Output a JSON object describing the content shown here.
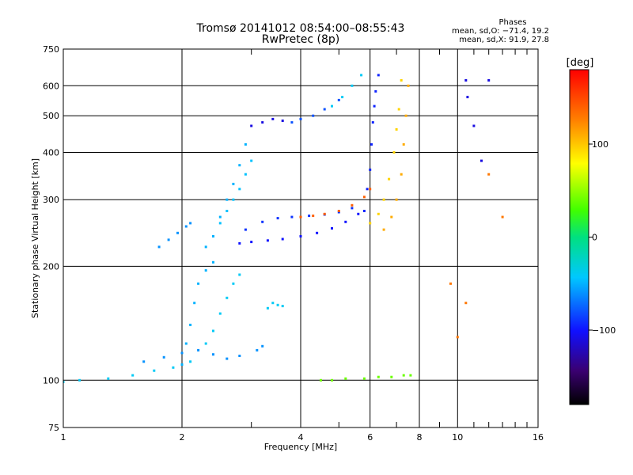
{
  "chart_data": {
    "type": "scatter",
    "title": "Tromsø 20141012 08:54:00–08:55:43",
    "subtitle": "RwPretec (8p)",
    "xlabel": "Frequency [MHz]",
    "ylabel": "Stationary phase Virtual Height [km]",
    "x_scale": "log",
    "y_scale": "log",
    "xlim": [
      1,
      16
    ],
    "ylim": [
      75,
      750
    ],
    "x_ticks": [
      1,
      2,
      4,
      6,
      8,
      10,
      16
    ],
    "x_tick_labels": [
      "1",
      "2",
      "4",
      "6",
      "8",
      "10",
      "16"
    ],
    "y_ticks": [
      75,
      100,
      200,
      300,
      400,
      500,
      600,
      750
    ],
    "y_tick_labels": [
      "75",
      "100",
      "200",
      "300",
      "400",
      "500",
      "600",
      "750"
    ],
    "grid": true,
    "stats": {
      "heading": "Phases",
      "line_o": "mean, sd,O: −71.4, 19.2",
      "line_x": "mean, sd,X:  91.9, 27.8"
    },
    "colorbar": {
      "label": "[deg]",
      "range": [
        -180,
        180
      ],
      "ticks": [
        -100,
        0,
        100
      ],
      "tick_labels": [
        "−100",
        "0",
        "100"
      ]
    },
    "traces": [
      {
        "x": [
          1.0,
          1.1,
          1.3,
          1.5,
          1.7,
          1.9,
          2.0,
          2.1
        ],
        "y": [
          99,
          100,
          101,
          103,
          106,
          108,
          110,
          112
        ],
        "phase": -40
      },
      {
        "x": [
          1.6,
          1.8,
          2.0,
          2.2,
          2.4,
          2.6,
          2.8,
          3.1,
          3.2
        ],
        "y": [
          112,
          115,
          118,
          120,
          117,
          114,
          116,
          120,
          123
        ],
        "phase": -60
      },
      {
        "x": [
          2.0,
          2.05,
          2.1,
          2.15,
          2.2,
          2.3,
          2.4
        ],
        "y": [
          110,
          125,
          140,
          160,
          180,
          195,
          205
        ],
        "phase": -50
      },
      {
        "x": [
          2.3,
          2.4,
          2.5,
          2.6,
          2.7,
          2.8
        ],
        "y": [
          125,
          135,
          150,
          165,
          180,
          190
        ],
        "phase": -40
      },
      {
        "x": [
          3.3,
          3.4,
          3.5,
          3.6
        ],
        "y": [
          155,
          160,
          158,
          157
        ],
        "phase": -40
      },
      {
        "x": [
          1.75,
          1.85,
          1.95,
          2.05,
          2.1
        ],
        "y": [
          225,
          235,
          245,
          255,
          260
        ],
        "phase": -60
      },
      {
        "x": [
          2.3,
          2.4,
          2.5,
          2.6,
          2.7,
          2.8,
          2.9
        ],
        "y": [
          225,
          240,
          270,
          300,
          330,
          370,
          420
        ],
        "phase": -50
      },
      {
        "x": [
          2.5,
          2.6,
          2.7,
          2.8,
          2.9,
          3.0
        ],
        "y": [
          260,
          280,
          300,
          320,
          350,
          380
        ],
        "phase": -45
      },
      {
        "x": [
          2.8,
          3.0,
          3.3,
          3.6,
          4.0,
          4.4,
          4.8,
          5.2,
          5.6
        ],
        "y": [
          230,
          232,
          234,
          236,
          240,
          245,
          252,
          262,
          275
        ],
        "phase": -100
      },
      {
        "x": [
          2.9,
          3.2,
          3.5,
          3.8,
          4.2,
          4.6,
          5.0,
          5.4
        ],
        "y": [
          250,
          262,
          268,
          270,
          272,
          274,
          278,
          285
        ],
        "phase": -90
      },
      {
        "x": [
          4.0,
          4.3,
          4.6,
          5.0,
          5.4,
          5.8,
          6.0
        ],
        "y": [
          270,
          272,
          275,
          280,
          290,
          305,
          320
        ],
        "phase": 140
      },
      {
        "x": [
          5.8,
          5.9,
          6.0,
          6.05,
          6.1,
          6.15,
          6.2,
          6.3
        ],
        "y": [
          280,
          320,
          360,
          420,
          480,
          530,
          580,
          640
        ],
        "phase": -95
      },
      {
        "x": [
          6.0,
          6.3,
          6.5,
          6.7,
          6.9,
          7.0,
          7.1,
          7.2
        ],
        "y": [
          260,
          275,
          300,
          340,
          400,
          460,
          520,
          620
        ],
        "phase": 95
      },
      {
        "x": [
          6.5,
          6.8,
          7.0,
          7.2,
          7.3,
          7.4,
          7.5
        ],
        "y": [
          250,
          270,
          300,
          350,
          420,
          500,
          600
        ],
        "phase": 110
      },
      {
        "x": [
          3.0,
          3.2,
          3.4,
          3.6
        ],
        "y": [
          470,
          480,
          490,
          485
        ],
        "phase": -110
      },
      {
        "x": [
          3.8,
          4.0,
          4.3,
          4.6,
          5.0
        ],
        "y": [
          480,
          490,
          500,
          520,
          550
        ],
        "phase": -80
      },
      {
        "x": [
          4.8,
          5.1,
          5.4,
          5.7
        ],
        "y": [
          530,
          560,
          600,
          640
        ],
        "phase": -40
      },
      {
        "x": [
          4.5,
          4.8,
          5.2,
          5.8,
          6.3,
          6.8,
          7.3,
          7.6
        ],
        "y": [
          100,
          100,
          101,
          101,
          102,
          102,
          103,
          103
        ],
        "phase": 40
      },
      {
        "x": [
          10.5,
          10.6,
          11.0,
          11.5,
          12.0
        ],
        "y": [
          620,
          560,
          470,
          380,
          620
        ],
        "phase": -110
      },
      {
        "x": [
          9.6,
          10.0,
          10.5,
          12.0,
          13.0
        ],
        "y": [
          180,
          130,
          160,
          350,
          270
        ],
        "phase": 130
      }
    ]
  }
}
